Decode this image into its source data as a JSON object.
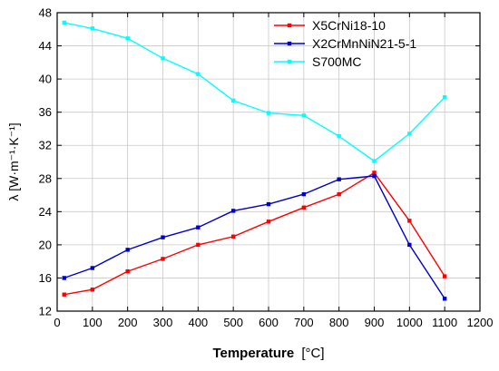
{
  "chart_data": {
    "type": "line",
    "xlabel": "Temperature [°C]",
    "xlabel_bold_part": "Temperature",
    "xlabel_unit_part": "[°C]",
    "ylabel": "λ [W·m⁻¹·K⁻¹]",
    "xlim": [
      0,
      1200
    ],
    "ylim": [
      12,
      48
    ],
    "xticks": [
      0,
      100,
      200,
      300,
      400,
      500,
      600,
      700,
      800,
      900,
      1000,
      1100,
      1200
    ],
    "yticks": [
      12,
      16,
      20,
      24,
      28,
      32,
      36,
      40,
      44,
      48
    ],
    "grid": true,
    "legend_position": "top-right",
    "series": [
      {
        "name": "X5CrNi18-10",
        "color": "#ff0000",
        "x": [
          20,
          100,
          200,
          300,
          400,
          500,
          600,
          700,
          800,
          900,
          1000,
          1100
        ],
        "y": [
          14.0,
          14.6,
          16.8,
          18.3,
          20.0,
          21.0,
          22.8,
          24.5,
          26.1,
          28.7,
          22.9,
          16.2
        ]
      },
      {
        "name": "X2CrMnNiN21-5-1",
        "color": "#0000cc",
        "x": [
          20,
          100,
          200,
          300,
          400,
          500,
          600,
          700,
          800,
          900,
          1000,
          1100
        ],
        "y": [
          16.0,
          17.2,
          19.4,
          20.9,
          22.1,
          24.1,
          24.9,
          26.1,
          27.9,
          28.3,
          20.0,
          13.5
        ]
      },
      {
        "name": "S700MC",
        "color": "#00ffff",
        "x": [
          20,
          100,
          200,
          300,
          400,
          500,
          600,
          700,
          800,
          900,
          1000,
          1100
        ],
        "y": [
          46.8,
          46.1,
          44.9,
          42.5,
          40.6,
          37.4,
          35.9,
          35.6,
          33.1,
          30.1,
          33.4,
          37.8
        ]
      }
    ]
  }
}
